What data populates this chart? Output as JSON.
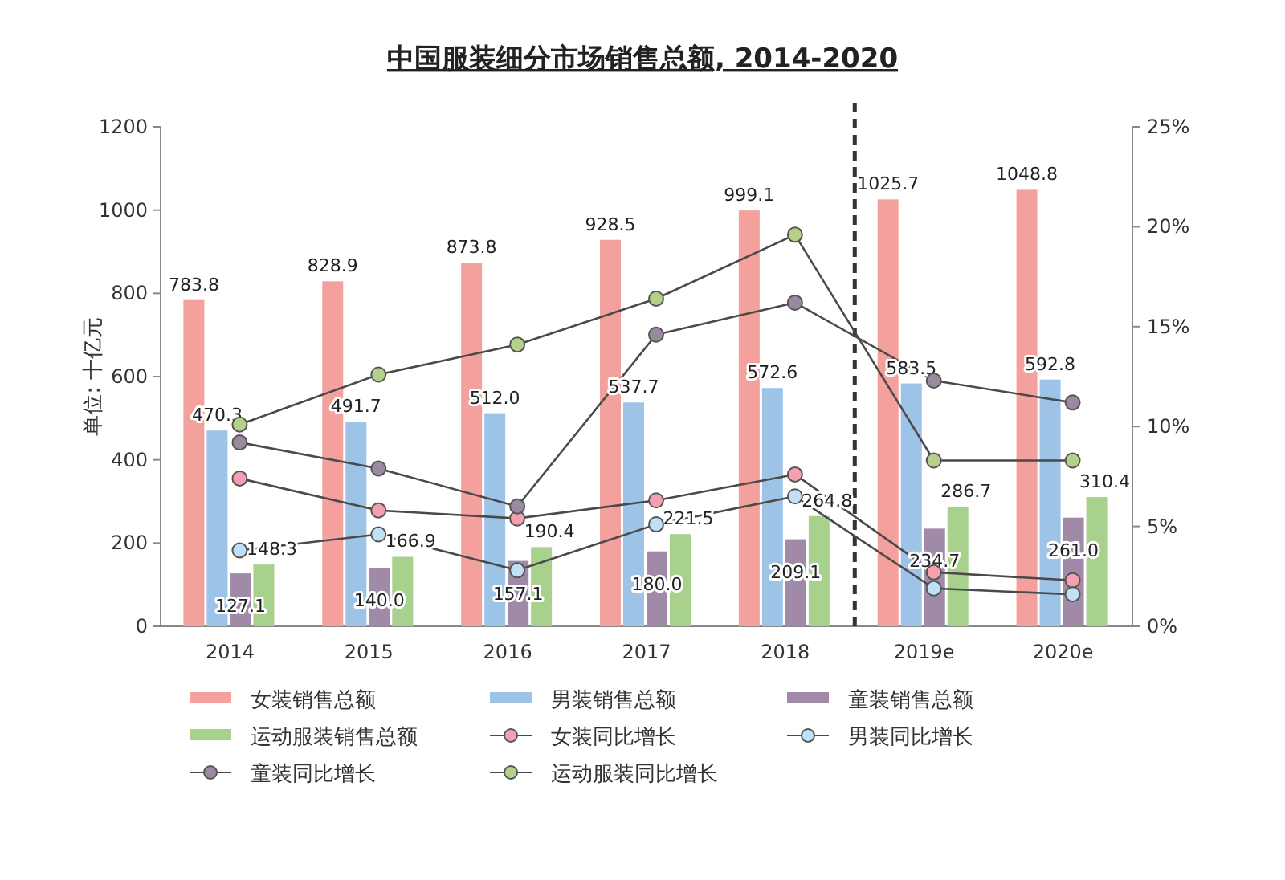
{
  "chart_data": {
    "type": "bar",
    "title": "中国服装细分市场销售总额, 2014-2020",
    "ylabel": "单位: 十亿元",
    "categories": [
      "2014",
      "2015",
      "2016",
      "2017",
      "2018",
      "2019e",
      "2020e"
    ],
    "series": [
      {
        "name": "女装销售总额",
        "color": "#f4a09c",
        "values": [
          783.8,
          828.9,
          873.8,
          928.5,
          999.1,
          1025.7,
          1048.8
        ],
        "value_labels": [
          "783.8",
          "828.9",
          "873.8",
          "928.5",
          "999.1",
          "1025.7",
          "1048.8"
        ]
      },
      {
        "name": "男装销售总额",
        "color": "#9dc3e6",
        "values": [
          470.3,
          491.7,
          512.0,
          537.7,
          572.6,
          583.5,
          592.8
        ],
        "value_labels": [
          "470.3",
          "491.7",
          "512.0",
          "537.7",
          "572.6",
          "583.5",
          "592.8"
        ]
      },
      {
        "name": "童装销售总额",
        "color": "#a08aa8",
        "values": [
          127.1,
          140.0,
          157.1,
          180.0,
          209.1,
          234.7,
          261.0
        ],
        "value_labels": [
          "127.1",
          "140.0",
          "157.1",
          "180.0",
          "209.1",
          "234.7",
          "261.0"
        ]
      },
      {
        "name": "运动服装销售总额",
        "color": "#a9d18e",
        "values": [
          148.3,
          166.9,
          190.4,
          221.5,
          264.8,
          286.7,
          310.4
        ],
        "value_labels": [
          "148.3",
          "166.9",
          "190.4",
          "221.5",
          "264.8",
          "286.7",
          "310.4"
        ]
      },
      {
        "name": "女装同比增长",
        "type": "line",
        "axis": "y2",
        "color": "#f4a0b0",
        "values": [
          7.4,
          5.8,
          5.4,
          6.3,
          7.6,
          2.7,
          2.3
        ]
      },
      {
        "name": "男装同比增长",
        "type": "line",
        "axis": "y2",
        "color": "#bfe0f5",
        "values": [
          3.8,
          4.6,
          2.8,
          5.1,
          6.5,
          1.9,
          1.6
        ]
      },
      {
        "name": "童装同比增长",
        "type": "line",
        "axis": "y2",
        "color": "#9a8aa0",
        "values": [
          9.2,
          7.9,
          6.0,
          14.6,
          16.2,
          12.3,
          11.2
        ]
      },
      {
        "name": "运动服装同比增长",
        "type": "line",
        "axis": "y2",
        "color": "#b5d08a",
        "values": [
          10.1,
          12.6,
          14.1,
          16.4,
          19.6,
          8.3,
          8.3
        ]
      }
    ],
    "ylim": [
      0,
      1200
    ],
    "yticks": [
      0,
      200,
      400,
      600,
      800,
      1000,
      1200
    ],
    "y2lim": [
      0,
      25
    ],
    "y2ticks": [
      {
        "value": 0,
        "label": "0%"
      },
      {
        "value": 5,
        "label": "5%"
      },
      {
        "value": 10,
        "label": "10%"
      },
      {
        "value": 15,
        "label": "15%"
      },
      {
        "value": 20,
        "label": "20%"
      },
      {
        "value": 25,
        "label": "25%"
      }
    ],
    "marker": "circle",
    "legend": "bottom"
  }
}
